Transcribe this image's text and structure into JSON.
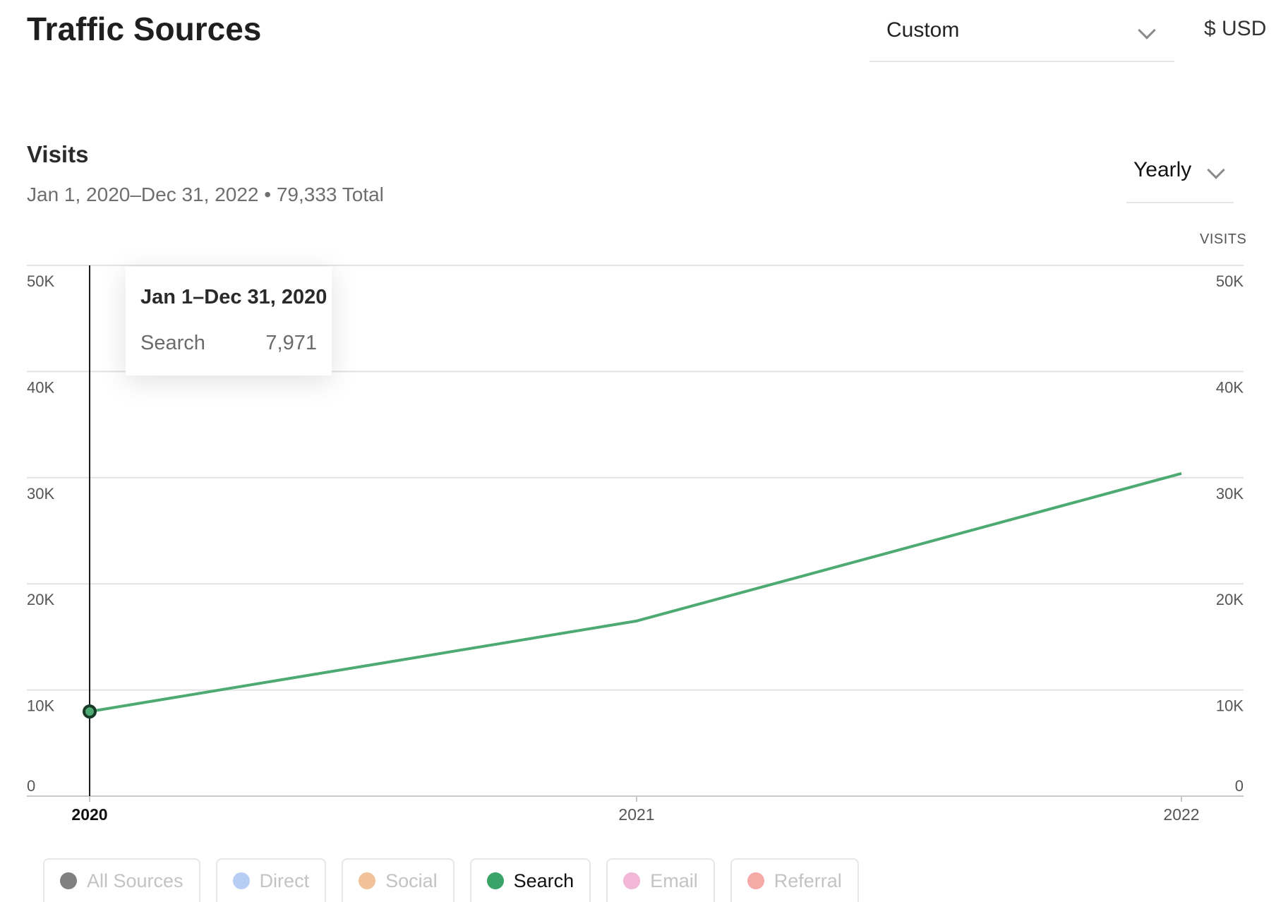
{
  "header": {
    "title": "Traffic Sources",
    "range_select": {
      "value": "Custom",
      "icon": "chevron-down-icon"
    },
    "currency": "$ USD"
  },
  "visits": {
    "title": "Visits",
    "subtitle": "Jan 1, 2020–Dec 31, 2022 • 79,333 Total",
    "period_select": {
      "value": "Yearly",
      "icon": "chevron-down-icon"
    },
    "axis_label": "VISITS"
  },
  "tooltip": {
    "title": "Jan 1–Dec 31, 2020",
    "series_label": "Search",
    "value": "7,971"
  },
  "legend": [
    {
      "label": "All Sources",
      "color": "#808080",
      "active": false
    },
    {
      "label": "Direct",
      "color": "#b7cdf3",
      "active": false
    },
    {
      "label": "Social",
      "color": "#f2c199",
      "active": false
    },
    {
      "label": "Search",
      "color": "#3aa368",
      "active": true
    },
    {
      "label": "Email",
      "color": "#f2b6d6",
      "active": false
    },
    {
      "label": "Referral",
      "color": "#f5aaa8",
      "active": false
    }
  ],
  "chart_data": {
    "type": "line",
    "x": [
      "2020",
      "2021",
      "2022"
    ],
    "series": [
      {
        "name": "Search",
        "color": "#4caa72",
        "values": [
          7971,
          16500,
          30400
        ]
      }
    ],
    "ylim": [
      0,
      50000
    ],
    "yticks": [
      "0",
      "10K",
      "20K",
      "30K",
      "40K",
      "50K"
    ],
    "ylabel_right": "VISITS",
    "grid": true,
    "highlighted_x": "2020",
    "crosshair_color": "#1a1a1a"
  }
}
